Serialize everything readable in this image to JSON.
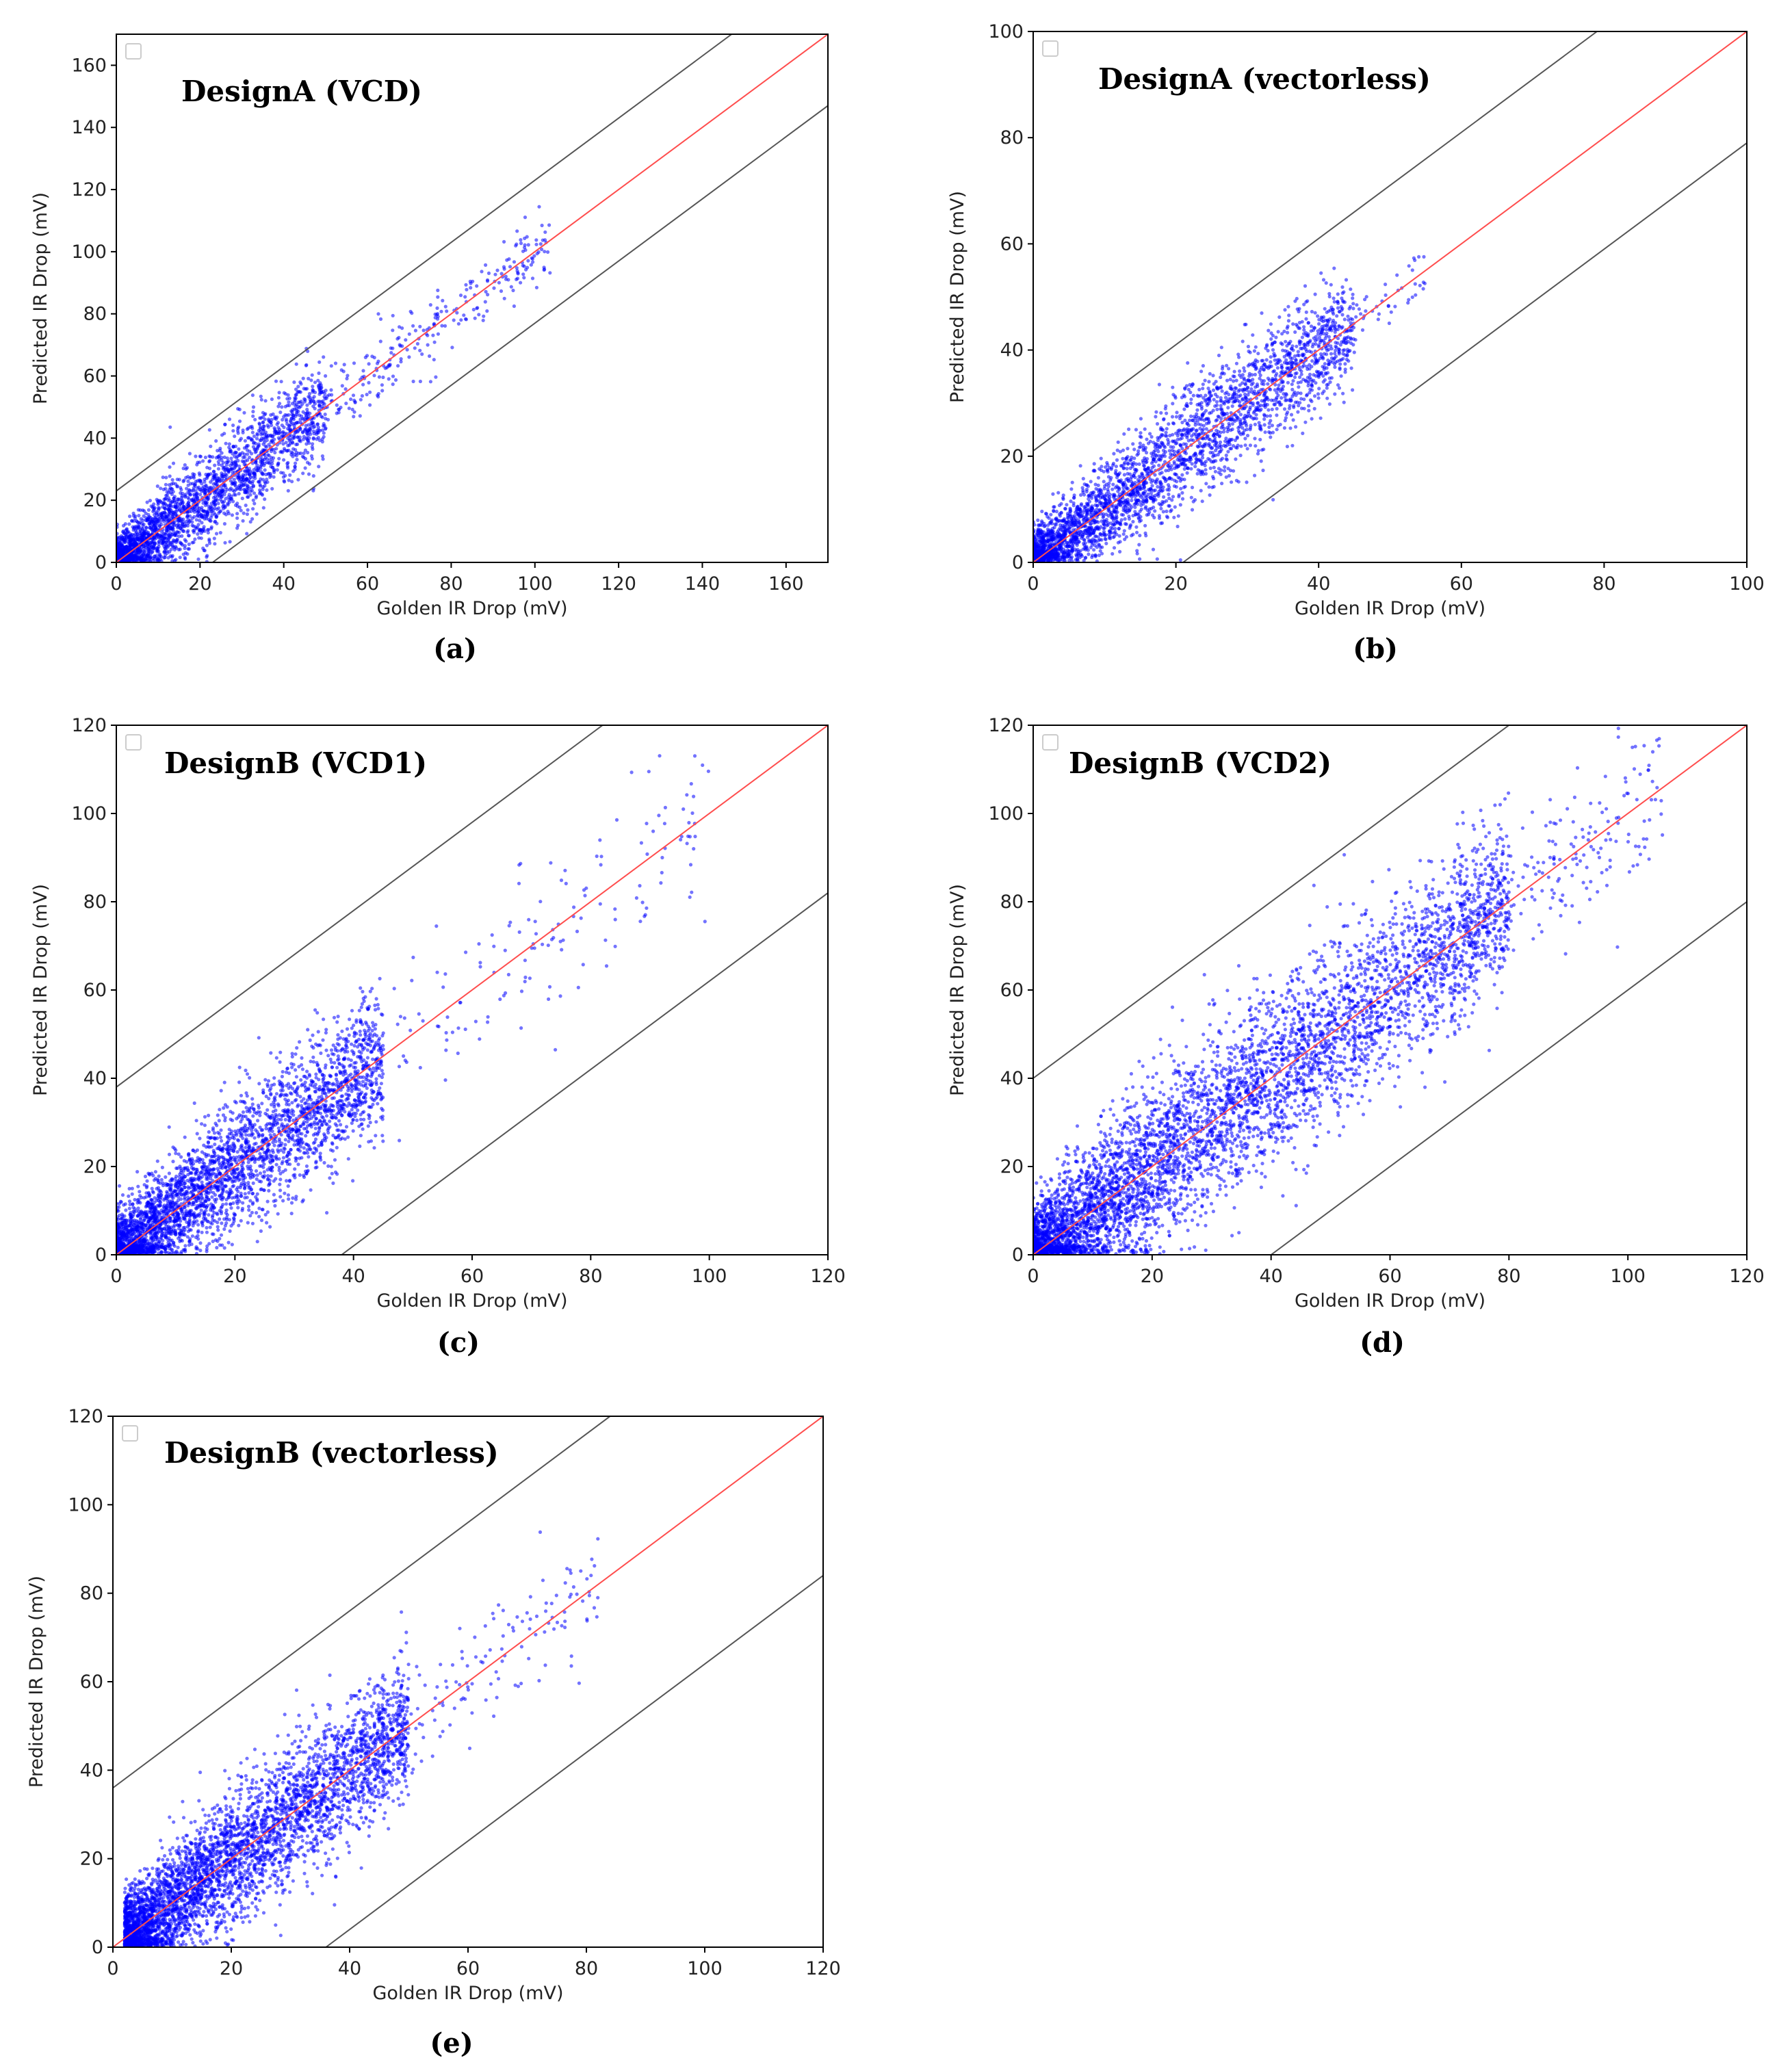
{
  "figure": {
    "panels_count": 5
  },
  "chart_data": [
    {
      "id": "a",
      "type": "scatter",
      "title": "DesignA (VCD)",
      "caption": "(a)",
      "xlabel": "Golden IR Drop (mV)",
      "ylabel": "Predicted IR Drop (mV)",
      "xlim": [
        0,
        170
      ],
      "ylim": [
        0,
        170
      ],
      "xticks": [
        0,
        20,
        40,
        60,
        80,
        100,
        120,
        140,
        160
      ],
      "yticks": [
        0,
        20,
        40,
        60,
        80,
        100,
        120,
        140,
        160
      ],
      "reference_line": {
        "slope": 1,
        "offset": 0,
        "color": "#ff4d4d"
      },
      "bound_lines": {
        "offset": 23,
        "color": "#555555"
      },
      "point_color": "#0000ff",
      "legend": "empty box top-left",
      "clusters": [
        {
          "x_range": [
            0,
            50
          ],
          "spread": 7,
          "count": 2600,
          "core_x_max": 30
        },
        {
          "x_range": [
            50,
            104
          ],
          "spread": 5,
          "count": 260
        }
      ]
    },
    {
      "id": "b",
      "type": "scatter",
      "title": "DesignA (vectorless)",
      "caption": "(b)",
      "xlabel": "Golden IR Drop (mV)",
      "ylabel": "Predicted IR Drop (mV)",
      "xlim": [
        0,
        100
      ],
      "ylim": [
        0,
        100
      ],
      "xticks": [
        0,
        20,
        40,
        60,
        80,
        100
      ],
      "yticks": [
        0,
        20,
        40,
        60,
        80,
        100
      ],
      "reference_line": {
        "slope": 1,
        "offset": 0,
        "color": "#ff4d4d"
      },
      "bound_lines": {
        "offset": 21,
        "color": "#555555"
      },
      "point_color": "#0000ff",
      "legend": "empty box top-left",
      "clusters": [
        {
          "x_range": [
            0,
            45
          ],
          "spread": 5,
          "count": 3200,
          "core_x_max": 30
        },
        {
          "x_range": [
            40,
            55
          ],
          "spread": 3,
          "count": 60
        }
      ]
    },
    {
      "id": "c",
      "type": "scatter",
      "title": "DesignB (VCD1)",
      "caption": "(c)",
      "xlabel": "Golden IR Drop (mV)",
      "ylabel": "Predicted IR Drop (mV)",
      "xlim": [
        0,
        120
      ],
      "ylim": [
        0,
        120
      ],
      "xticks": [
        0,
        20,
        40,
        60,
        80,
        100,
        120
      ],
      "yticks": [
        0,
        20,
        40,
        60,
        80,
        100,
        120
      ],
      "reference_line": {
        "slope": 1,
        "offset": 0,
        "color": "#ff4d4d"
      },
      "bound_lines": {
        "offset": 38,
        "color": "#555555"
      },
      "point_color": "#0000ff",
      "legend": "empty box top-left",
      "clusters": [
        {
          "x_range": [
            0,
            45
          ],
          "spread": 7,
          "count": 3600,
          "core_x_max": 35
        },
        {
          "x_range": [
            40,
            100
          ],
          "spread": 8,
          "count": 160
        }
      ]
    },
    {
      "id": "d",
      "type": "scatter",
      "title": "DesignB (VCD2)",
      "caption": "(d)",
      "xlabel": "Golden IR Drop (mV)",
      "ylabel": "Predicted IR Drop (mV)",
      "xlim": [
        0,
        120
      ],
      "ylim": [
        0,
        120
      ],
      "xticks": [
        0,
        20,
        40,
        60,
        80,
        100,
        120
      ],
      "yticks": [
        0,
        20,
        40,
        60,
        80,
        100,
        120
      ],
      "reference_line": {
        "slope": 1,
        "offset": 0,
        "color": "#ff4d4d"
      },
      "bound_lines": {
        "offset": 40,
        "color": "#555555"
      },
      "point_color": "#0000ff",
      "legend": "empty box top-left",
      "clusters": [
        {
          "x_range": [
            0,
            80
          ],
          "spread": 9,
          "count": 5200,
          "core_x_max": 70
        },
        {
          "x_range": [
            70,
            106
          ],
          "spread": 8,
          "count": 220
        }
      ]
    },
    {
      "id": "e",
      "type": "scatter",
      "title": "DesignB (vectorless)",
      "caption": "(e)",
      "xlabel": "Golden IR Drop (mV)",
      "ylabel": "Predicted IR Drop (mV)",
      "xlim": [
        0,
        120
      ],
      "ylim": [
        0,
        120
      ],
      "xticks": [
        0,
        20,
        40,
        60,
        80,
        100,
        120
      ],
      "yticks": [
        0,
        20,
        40,
        60,
        80,
        100,
        120
      ],
      "reference_line": {
        "slope": 1,
        "offset": 0,
        "color": "#ff4d4d"
      },
      "bound_lines": {
        "offset": 36,
        "color": "#555555"
      },
      "point_color": "#0000ff",
      "legend": "empty box top-left",
      "clusters": [
        {
          "x_range": [
            2,
            50
          ],
          "spread": 7,
          "count": 4200,
          "core_x_max": 40
        },
        {
          "x_range": [
            45,
            82
          ],
          "spread": 7,
          "count": 140
        }
      ]
    }
  ]
}
